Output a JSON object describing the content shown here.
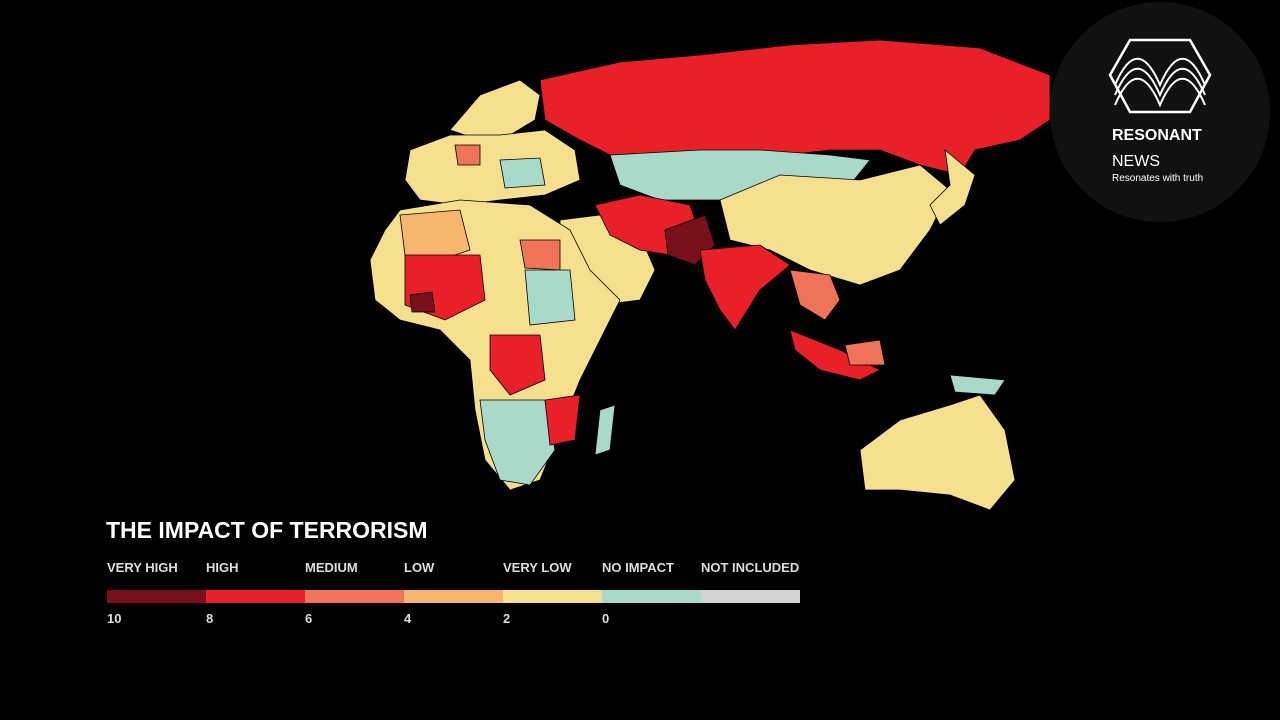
{
  "header": {
    "title": "THE IMPACT OF TERRORISM"
  },
  "legend": {
    "categories": [
      {
        "label": "VERY HIGH",
        "color": "#7a0f1c"
      },
      {
        "label": "HIGH",
        "color": "#e8202a"
      },
      {
        "label": "MEDIUM",
        "color": "#ef7358"
      },
      {
        "label": "LOW",
        "color": "#f7b56e"
      },
      {
        "label": "VERY LOW",
        "color": "#f6e08f"
      },
      {
        "label": "NO IMPACT",
        "color": "#a9d9cb"
      },
      {
        "label": "NOT INCLUDED",
        "color": "#d3d3d3"
      }
    ],
    "ticks": [
      10,
      8,
      6,
      4,
      2,
      0
    ]
  },
  "logo": {
    "name": "RESONANT",
    "sub": "NEWS",
    "tagline": "Resonates with truth"
  }
}
